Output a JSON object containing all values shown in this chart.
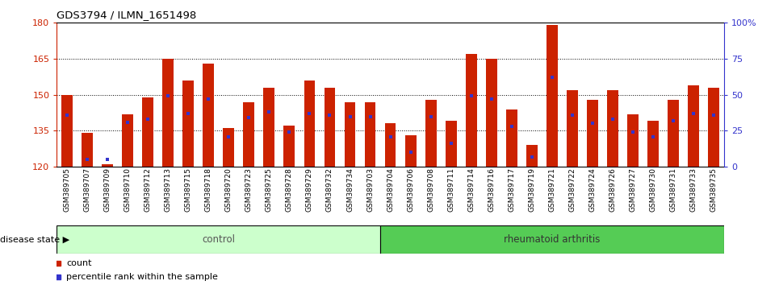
{
  "title": "GDS3794 / ILMN_1651498",
  "samples": [
    "GSM389705",
    "GSM389707",
    "GSM389709",
    "GSM389710",
    "GSM389712",
    "GSM389713",
    "GSM389715",
    "GSM389718",
    "GSM389720",
    "GSM389723",
    "GSM389725",
    "GSM389728",
    "GSM389729",
    "GSM389732",
    "GSM389734",
    "GSM389703",
    "GSM389704",
    "GSM389706",
    "GSM389708",
    "GSM389711",
    "GSM389714",
    "GSM389716",
    "GSM389717",
    "GSM389719",
    "GSM389721",
    "GSM389722",
    "GSM389724",
    "GSM389726",
    "GSM389727",
    "GSM389730",
    "GSM389731",
    "GSM389733",
    "GSM389735"
  ],
  "bar_heights": [
    150,
    134,
    121,
    142,
    149,
    165,
    156,
    163,
    136,
    147,
    153,
    137,
    156,
    153,
    147,
    147,
    138,
    133,
    148,
    139,
    167,
    165,
    144,
    129,
    179,
    152,
    148,
    152,
    142,
    139,
    148,
    154,
    153
  ],
  "percentile_ranks": [
    36,
    5,
    5,
    31,
    33,
    49,
    37,
    47,
    21,
    34,
    38,
    24,
    37,
    36,
    35,
    35,
    21,
    10,
    35,
    16,
    49,
    47,
    28,
    7,
    62,
    36,
    30,
    33,
    24,
    21,
    32,
    37,
    36
  ],
  "ymin": 120,
  "ymax": 180,
  "yticks": [
    120,
    135,
    150,
    165,
    180
  ],
  "right_yticks": [
    0,
    25,
    50,
    75,
    100
  ],
  "bar_color": "#cc2200",
  "marker_color": "#3333cc",
  "control_count": 16,
  "group_labels": [
    "control",
    "rheumatoid arthritis"
  ],
  "group_colors_control": "#ccffcc",
  "group_colors_ra": "#55cc55",
  "legend_items": [
    "count",
    "percentile rank within the sample"
  ],
  "legend_colors": [
    "#cc2200",
    "#3333cc"
  ],
  "disease_state_label": "disease state",
  "bg_color": "#ffffff"
}
